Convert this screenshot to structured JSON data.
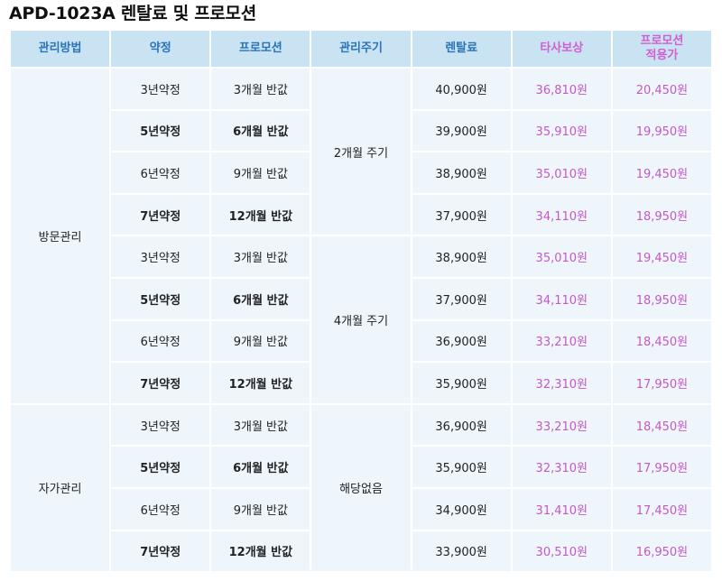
{
  "title": "APD-1023A 렌탈료 및 프로모션",
  "headers": {
    "method": "관리방법",
    "contract": "약정",
    "promo": "프로모션",
    "cycle": "관리주기",
    "rental": "렌탈료",
    "competitor": "타사보상",
    "promo_price_line1": "프로모션",
    "promo_price_line2": "적용가"
  },
  "methods": [
    "방문관리",
    "자가관리"
  ],
  "cycles": [
    "2개월 주기",
    "4개월 주기",
    "해당없음"
  ],
  "rows": [
    {
      "contract": "3년약정",
      "promo": "3개월 반값",
      "rental": "40,900원",
      "competitor": "36,810원",
      "promo_price": "20,450원"
    },
    {
      "contract": "5년약정",
      "promo": "6개월 반값",
      "rental": "39,900원",
      "competitor": "35,910원",
      "promo_price": "19,950원"
    },
    {
      "contract": "6년약정",
      "promo": "9개월 반값",
      "rental": "38,900원",
      "competitor": "35,010원",
      "promo_price": "19,450원"
    },
    {
      "contract": "7년약정",
      "promo": "12개월 반값",
      "rental": "37,900원",
      "competitor": "34,110원",
      "promo_price": "18,950원"
    },
    {
      "contract": "3년약정",
      "promo": "3개월 반값",
      "rental": "38,900원",
      "competitor": "35,010원",
      "promo_price": "19,450원"
    },
    {
      "contract": "5년약정",
      "promo": "6개월 반값",
      "rental": "37,900원",
      "competitor": "34,110원",
      "promo_price": "18,950원"
    },
    {
      "contract": "6년약정",
      "promo": "9개월 반값",
      "rental": "36,900원",
      "competitor": "33,210원",
      "promo_price": "18,450원"
    },
    {
      "contract": "7년약정",
      "promo": "12개월 반값",
      "rental": "35,900원",
      "competitor": "32,310원",
      "promo_price": "17,950원"
    },
    {
      "contract": "3년약정",
      "promo": "3개월 반값",
      "rental": "36,900원",
      "competitor": "33,210원",
      "promo_price": "18,450원"
    },
    {
      "contract": "5년약정",
      "promo": "6개월 반값",
      "rental": "35,900원",
      "competitor": "32,310원",
      "promo_price": "17,950원"
    },
    {
      "contract": "6년약정",
      "promo": "9개월 반값",
      "rental": "34,900원",
      "competitor": "31,410원",
      "promo_price": "17,450원"
    },
    {
      "contract": "7년약정",
      "promo": "12개월 반값",
      "rental": "33,900원",
      "competitor": "30,510원",
      "promo_price": "16,950원"
    }
  ]
}
